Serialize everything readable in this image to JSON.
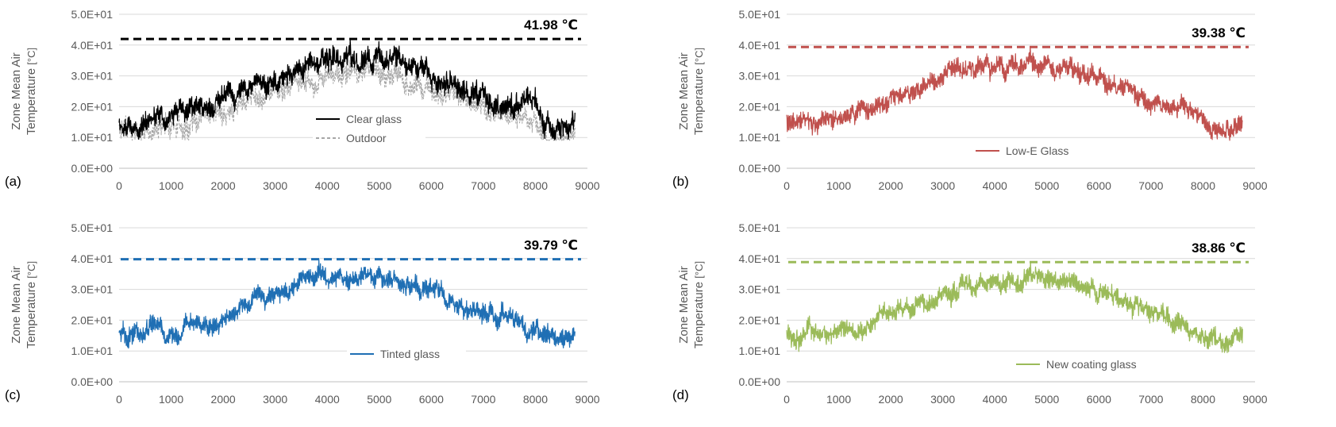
{
  "y_title": {
    "line1": "Zone Mean Air",
    "line2": "Temperature",
    "unit": "[°C]"
  },
  "chart_data": [
    {
      "panel": "(a)",
      "type": "line",
      "xlim": [
        0,
        9000
      ],
      "ylim": [
        0,
        50
      ],
      "x_ticks": [
        "0",
        "1000",
        "2000",
        "3000",
        "4000",
        "5000",
        "6000",
        "7000",
        "8000",
        "9000"
      ],
      "y_ticks": [
        "0.0E+00",
        "1.0E+01",
        "2.0E+01",
        "3.0E+01",
        "4.0E+01",
        "5.0E+01"
      ],
      "grid": "horizontal",
      "legend_position": "center",
      "max_line": {
        "value": 41.98,
        "label": "41.98 ℃",
        "color": "#000000"
      },
      "series": [
        {
          "name": "Clear glass",
          "style": "solid",
          "color": "#000000",
          "offset": 0.6,
          "noise": 4.2,
          "seed": 11
        },
        {
          "name": "Outdoor",
          "style": "dashed",
          "color": "#a6a6a6",
          "offset": -3.2,
          "noise": 3.8,
          "seed": 29
        }
      ]
    },
    {
      "panel": "(b)",
      "type": "line",
      "xlim": [
        0,
        9000
      ],
      "ylim": [
        0,
        50
      ],
      "x_ticks": [
        "0",
        "1000",
        "2000",
        "3000",
        "4000",
        "5000",
        "6000",
        "7000",
        "8000",
        "9000"
      ],
      "y_ticks": [
        "0.0E+00",
        "1.0E+01",
        "2.0E+01",
        "3.0E+01",
        "4.0E+01",
        "5.0E+01"
      ],
      "grid": "horizontal",
      "legend_position": "bottom-center",
      "max_line": {
        "value": 39.38,
        "label": "39.38 ℃",
        "color": "#c0504d"
      },
      "series": [
        {
          "name": "Low-E Glass",
          "style": "solid",
          "color": "#c0504d",
          "offset": 0,
          "noise": 3.2,
          "seed": 41
        }
      ]
    },
    {
      "panel": "(c)",
      "type": "line",
      "xlim": [
        0,
        9000
      ],
      "ylim": [
        0,
        50
      ],
      "x_ticks": [
        "0",
        "1000",
        "2000",
        "3000",
        "4000",
        "5000",
        "6000",
        "7000",
        "8000",
        "9000"
      ],
      "y_ticks": [
        "0.0E+00",
        "1.0E+01",
        "2.0E+01",
        "3.0E+01",
        "4.0E+01",
        "5.0E+01"
      ],
      "grid": "horizontal",
      "legend_position": "bottom-center",
      "max_line": {
        "value": 39.79,
        "label": "39.79 ℃",
        "color": "#1f6fb4"
      },
      "series": [
        {
          "name": "Tinted glass",
          "style": "solid",
          "color": "#1f6fb4",
          "offset": 0.2,
          "noise": 3.3,
          "seed": 57
        }
      ]
    },
    {
      "panel": "(d)",
      "type": "line",
      "xlim": [
        0,
        9000
      ],
      "ylim": [
        0,
        50
      ],
      "x_ticks": [
        "0",
        "1000",
        "2000",
        "3000",
        "4000",
        "5000",
        "6000",
        "7000",
        "8000",
        "9000"
      ],
      "y_ticks": [
        "0.0E+00",
        "1.0E+01",
        "2.0E+01",
        "3.0E+01",
        "4.0E+01",
        "5.0E+01"
      ],
      "grid": "horizontal",
      "legend_position": "bottom-center",
      "max_line": {
        "value": 38.86,
        "label": "38.86 ℃",
        "color": "#9bbb59"
      },
      "series": [
        {
          "name": "New coating glass",
          "style": "solid",
          "color": "#9bbb59",
          "offset": -0.2,
          "noise": 3.1,
          "seed": 73
        }
      ]
    }
  ]
}
